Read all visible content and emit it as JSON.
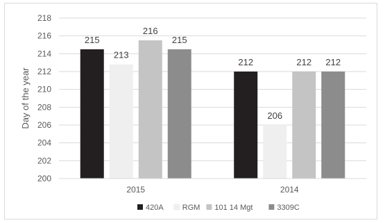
{
  "chart_data": {
    "type": "bar",
    "categories": [
      "2015",
      "2014"
    ],
    "series": [
      {
        "name": "420A",
        "values": [
          215,
          212
        ],
        "color": "#231f20"
      },
      {
        "name": "RGM",
        "values": [
          213,
          206
        ],
        "color": "#efefef"
      },
      {
        "name": "101 14 Mgt",
        "values": [
          216,
          212
        ],
        "color": "#c4c4c4"
      },
      {
        "name": "3309C",
        "values": [
          215,
          212
        ],
        "color": "#8c8c8c"
      }
    ],
    "bar_values": [
      [
        214.5,
        212
      ],
      [
        212.8,
        206
      ],
      [
        215.5,
        212
      ],
      [
        214.5,
        212
      ]
    ],
    "ylabel": "Day of the year",
    "xlabel": "",
    "title": "",
    "ylim": [
      200,
      218
    ],
    "yticks": [
      200,
      202,
      204,
      206,
      208,
      210,
      212,
      214,
      216,
      218
    ],
    "grid": true,
    "legend_position": "bottom",
    "grid_color": "#d9d9d9",
    "text_color": "#595959"
  }
}
